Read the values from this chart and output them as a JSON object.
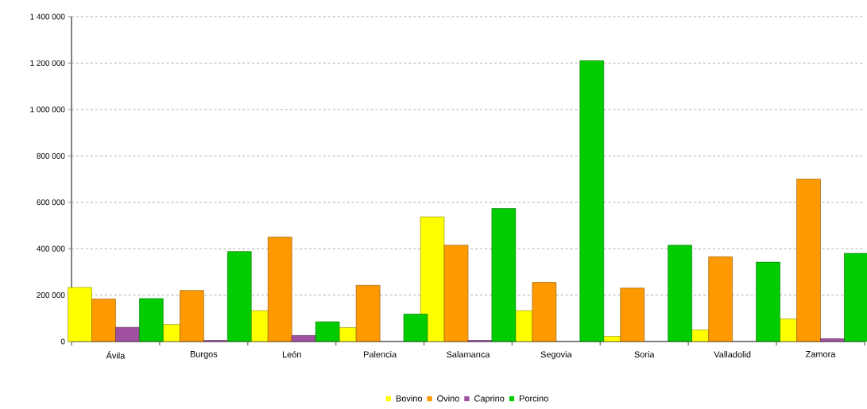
{
  "chart_data": {
    "type": "bar",
    "categories": [
      "Ávila",
      "Burgos",
      "León",
      "Palencia",
      "Salamanca",
      "Segovia",
      "Soria",
      "Valladolid",
      "Zamora"
    ],
    "series": [
      {
        "name": "Bovino",
        "color": "#ffff00",
        "values": [
          233000,
          73000,
          133000,
          60000,
          537000,
          133000,
          22000,
          50000,
          97000
        ]
      },
      {
        "name": "Ovino",
        "color": "#ff9900",
        "values": [
          183000,
          220000,
          450000,
          242000,
          415000,
          255000,
          230000,
          365000,
          700000
        ]
      },
      {
        "name": "Caprino",
        "color": "#a050a0",
        "values": [
          61000,
          5000,
          26000,
          null,
          5000,
          null,
          null,
          null,
          12000
        ]
      },
      {
        "name": "Porcino",
        "color": "#00cc00",
        "values": [
          185000,
          388000,
          85000,
          118000,
          573000,
          1210000,
          415000,
          342000,
          380000
        ]
      }
    ],
    "ylim": [
      0,
      1400000
    ],
    "yticks": [
      0,
      {
        "value": 200000,
        "label": "200 000"
      },
      {
        "value": 400000,
        "label": "400 000"
      },
      {
        "value": 600000,
        "label": "600 000"
      },
      {
        "value": 800000,
        "label": "800 000"
      },
      {
        "value": 1000000,
        "label": "1 000 000"
      },
      {
        "value": 1200000,
        "label": "1 200 000"
      },
      {
        "value": 1400000,
        "label": "1 400 000"
      }
    ],
    "grid": "y",
    "legend": "bottom"
  }
}
